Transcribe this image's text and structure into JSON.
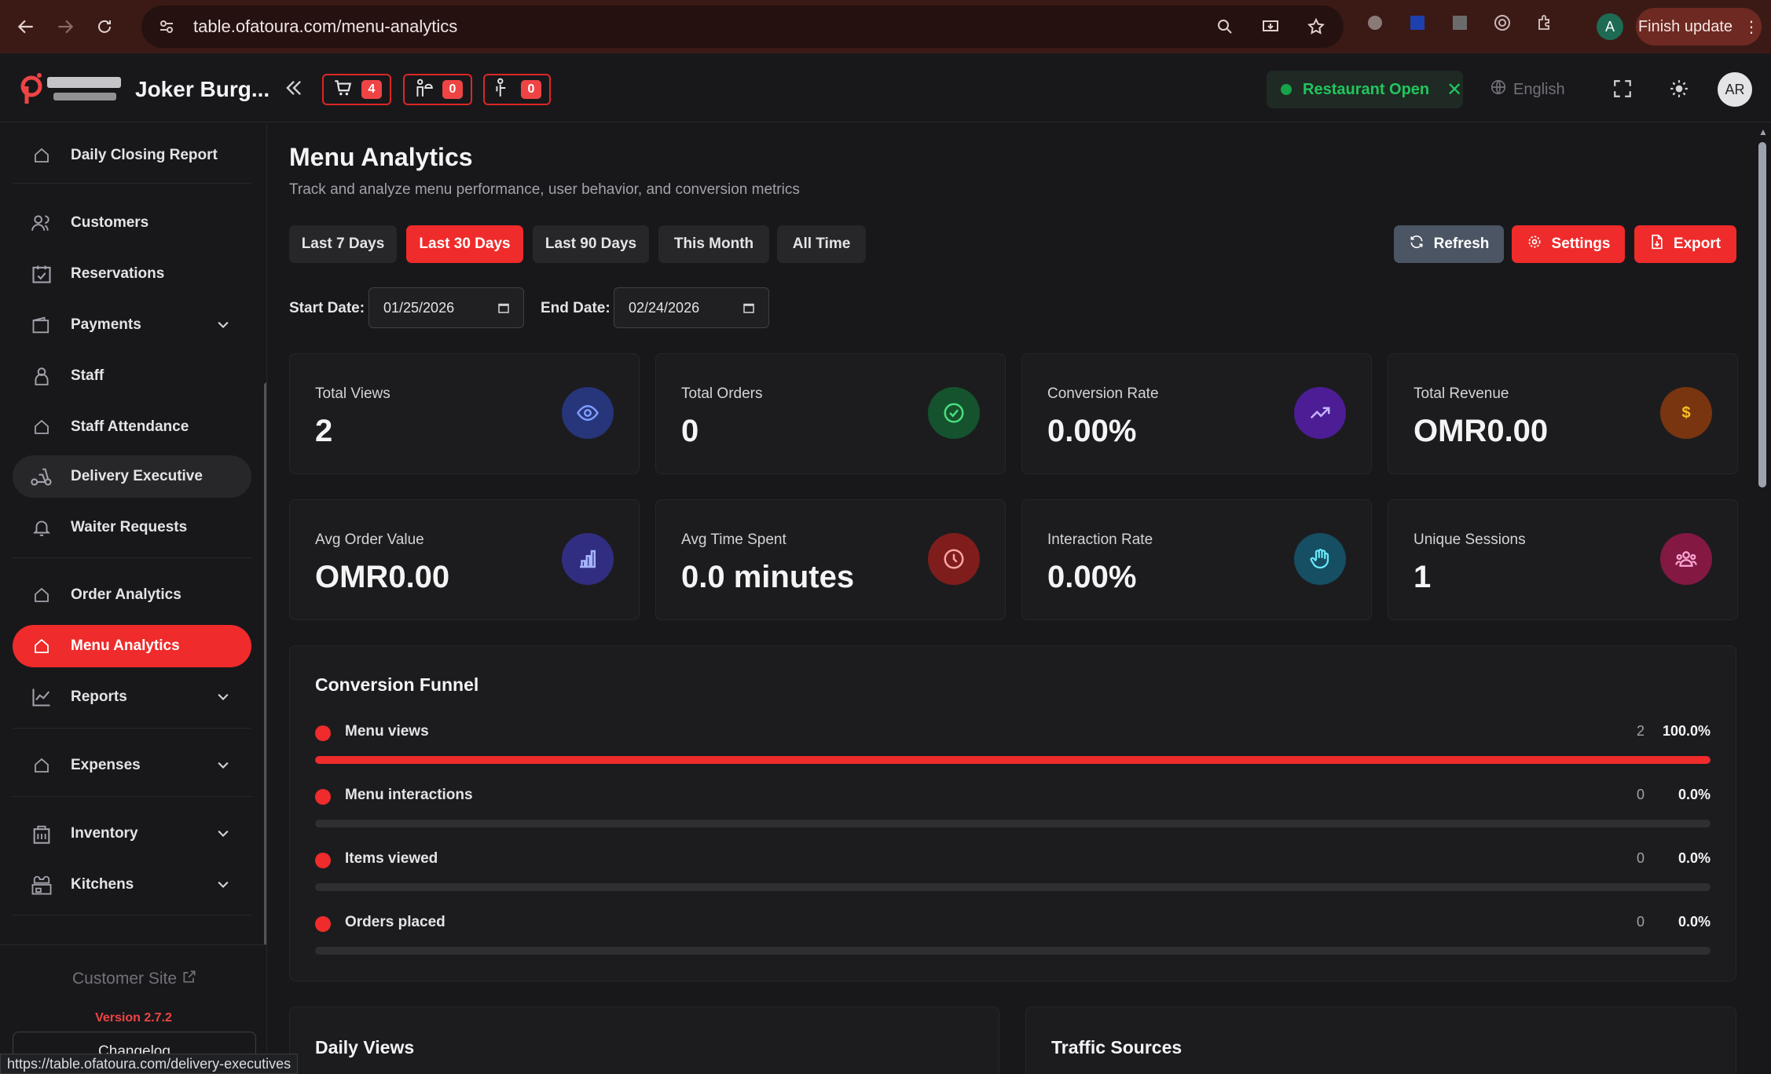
{
  "browser": {
    "url": "table.ofatoura.com/menu-analytics",
    "finish_update": "Finish update",
    "profile_initial": "A",
    "status_url": "https://table.ofatoura.com/delivery-executives"
  },
  "header": {
    "restaurant_name": "Joker Burg...",
    "cart_count": "4",
    "waiter_count": "0",
    "delivery_count": "0",
    "status": "Restaurant Open",
    "language": "English",
    "avatar_initials": "AR"
  },
  "sidebar": {
    "items": [
      {
        "label": "Daily Closing Report"
      },
      {
        "label": "Customers"
      },
      {
        "label": "Reservations"
      },
      {
        "label": "Payments"
      },
      {
        "label": "Staff"
      },
      {
        "label": "Staff Attendance"
      },
      {
        "label": "Delivery Executive"
      },
      {
        "label": "Waiter Requests"
      },
      {
        "label": "Order Analytics"
      },
      {
        "label": "Menu Analytics"
      },
      {
        "label": "Reports"
      },
      {
        "label": "Expenses"
      },
      {
        "label": "Inventory"
      },
      {
        "label": "Kitchens"
      }
    ],
    "customer_site": "Customer Site",
    "version": "Version 2.7.2",
    "changelog": "Changelog"
  },
  "main": {
    "title": "Menu Analytics",
    "subtitle": "Track and analyze menu performance, user behavior, and conversion metrics",
    "ranges": [
      "Last 7 Days",
      "Last 30 Days",
      "Last 90 Days",
      "This Month",
      "All Time"
    ],
    "active_range": "Last 30 Days",
    "actions": {
      "refresh": "Refresh",
      "settings": "Settings",
      "export": "Export"
    },
    "start_label": "Start Date:",
    "start_date": "01/25/2026",
    "end_label": "End Date:",
    "end_date": "02/24/2026",
    "cards": [
      {
        "label": "Total Views",
        "value": "2",
        "icon": "eye-icon",
        "color": "#3b5bdb"
      },
      {
        "label": "Total Orders",
        "value": "0",
        "icon": "check-circle-icon",
        "color": "#16a34a"
      },
      {
        "label": "Conversion Rate",
        "value": "0.00%",
        "icon": "trending-up-icon",
        "color": "#7c3aed"
      },
      {
        "label": "Total Revenue",
        "value": "OMR0.00",
        "icon": "dollar-icon",
        "color": "#d97706"
      },
      {
        "label": "Avg Order Value",
        "value": "OMR0.00",
        "icon": "bar-chart-icon",
        "color": "#4f46e5"
      },
      {
        "label": "Avg Time Spent",
        "value": "0.0 minutes",
        "icon": "clock-icon",
        "color": "#dc2626"
      },
      {
        "label": "Interaction Rate",
        "value": "0.00%",
        "icon": "hand-icon",
        "color": "#0891b2"
      },
      {
        "label": "Unique Sessions",
        "value": "1",
        "icon": "users-icon",
        "color": "#db2777"
      }
    ],
    "funnel": {
      "title": "Conversion Funnel",
      "rows": [
        {
          "label": "Menu views",
          "count": "2",
          "percent": "100.0%",
          "fraction": 1.0
        },
        {
          "label": "Menu interactions",
          "count": "0",
          "percent": "0.0%",
          "fraction": 0
        },
        {
          "label": "Items viewed",
          "count": "0",
          "percent": "0.0%",
          "fraction": 0
        },
        {
          "label": "Orders placed",
          "count": "0",
          "percent": "0.0%",
          "fraction": 0
        }
      ]
    },
    "daily_views_title": "Daily Views",
    "traffic_sources_title": "Traffic Sources"
  }
}
